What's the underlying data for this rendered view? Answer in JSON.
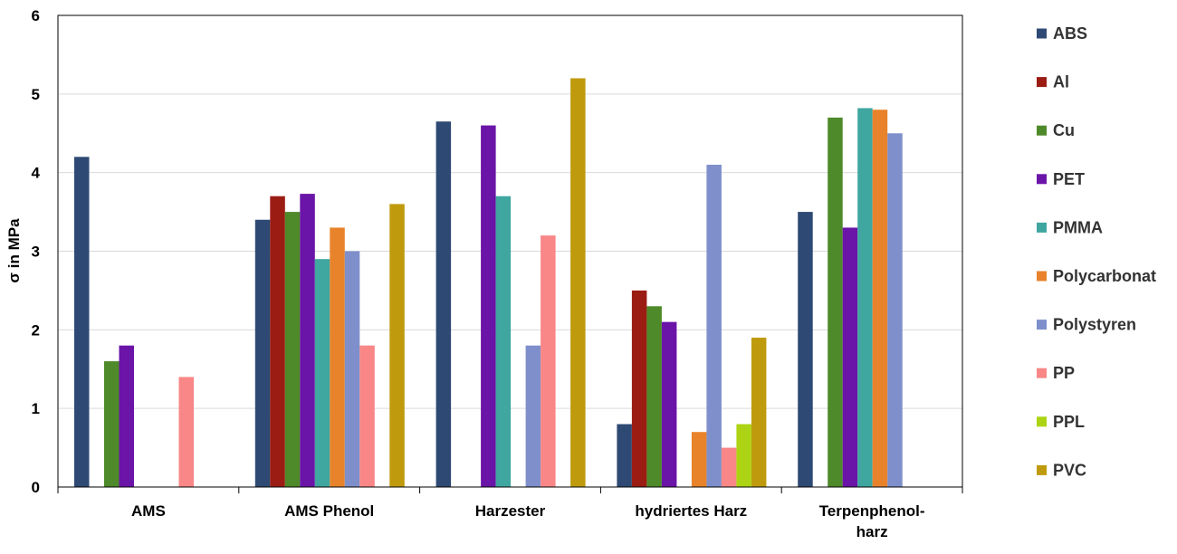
{
  "chart_data": {
    "type": "bar",
    "title": "",
    "xlabel": "",
    "ylabel": "σ in MPa",
    "ylim": [
      0,
      6
    ],
    "yticks": [
      0,
      1,
      2,
      3,
      4,
      5,
      6
    ],
    "grid": true,
    "legend_position": "right",
    "categories": [
      "AMS",
      "AMS Phenol",
      "Harzester",
      "hydriertes Harz",
      "Terpenphenol-harz"
    ],
    "category_display": [
      [
        "AMS"
      ],
      [
        "AMS Phenol"
      ],
      [
        "Harzester"
      ],
      [
        "hydriertes Harz"
      ],
      [
        "Terpenphenol-",
        "harz"
      ]
    ],
    "series": [
      {
        "name": "ABS",
        "color": "#2E4A74",
        "values": [
          4.2,
          3.4,
          4.65,
          0.8,
          3.5
        ]
      },
      {
        "name": "Al",
        "color": "#9B1C13",
        "values": [
          null,
          3.7,
          null,
          2.5,
          null
        ]
      },
      {
        "name": "Cu",
        "color": "#4E8A2A",
        "values": [
          1.6,
          3.5,
          null,
          2.3,
          4.7
        ]
      },
      {
        "name": "PET",
        "color": "#6A14A8",
        "values": [
          1.8,
          3.73,
          4.6,
          2.1,
          3.3
        ]
      },
      {
        "name": "PMMA",
        "color": "#3FA6A0",
        "values": [
          null,
          2.9,
          3.7,
          null,
          4.82
        ]
      },
      {
        "name": "Polycarbonat",
        "color": "#E8832B",
        "values": [
          null,
          3.3,
          null,
          0.7,
          4.8
        ]
      },
      {
        "name": "Polystyren",
        "color": "#7E8FCB",
        "values": [
          null,
          3.0,
          1.8,
          4.1,
          4.5
        ]
      },
      {
        "name": "PP",
        "color": "#F98787",
        "values": [
          1.4,
          1.8,
          3.2,
          0.5,
          null
        ]
      },
      {
        "name": "PPL",
        "color": "#ADD414",
        "values": [
          null,
          null,
          null,
          0.8,
          null
        ]
      },
      {
        "name": "PVC",
        "color": "#BF9A0D",
        "values": [
          null,
          3.6,
          5.2,
          1.9,
          null
        ]
      }
    ]
  }
}
